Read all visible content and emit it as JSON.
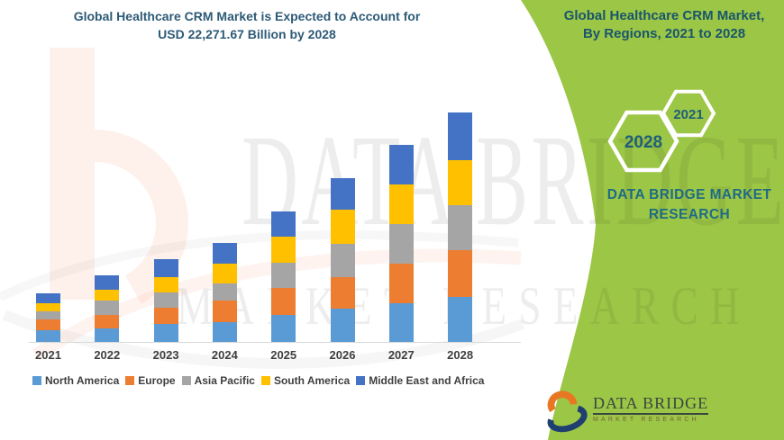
{
  "header": {
    "title_line1": "Global Healthcare CRM Market is Expected to Account for",
    "title_line2": "USD 22,271.67 Billion by 2028"
  },
  "banner": {
    "title_line1": "Global Healthcare CRM Market,",
    "title_line2": "By Regions, 2021 to 2028",
    "hexagon_large_label": "2028",
    "hexagon_small_label": "2021",
    "brand_line1": "DATA BRIDGE MARKET",
    "brand_line2": "RESEARCH",
    "background_color": "#9CC646",
    "text_color": "#19566B",
    "brand_text_color": "#1E6B84"
  },
  "watermark": {
    "row1": "DATA BRIDGE",
    "row2": "MARKET RESEARCH"
  },
  "logo": {
    "name": "DATA BRIDGE",
    "subtext": "MARKET RESEARCH"
  },
  "chart_data": {
    "type": "bar",
    "stacked": true,
    "title": "Global Healthcare CRM Market, By Regions, 2021 to 2028",
    "units": "USD Billion (estimated from bar heights; 2028 total stated as 22,271.67)",
    "stated_total_2028": "22,271.67",
    "categories": [
      "2021",
      "2022",
      "2023",
      "2024",
      "2025",
      "2026",
      "2027",
      "2028"
    ],
    "series": [
      {
        "name": "North America",
        "color": "#5B9BD5",
        "values": [
          1109,
          1310,
          1746,
          1894,
          2645,
          3204,
          3728,
          4365
        ]
      },
      {
        "name": "Europe",
        "color": "#ED7D31",
        "values": [
          1074,
          1310,
          1598,
          2121,
          2593,
          3056,
          3894,
          4513
        ]
      },
      {
        "name": "Asia Pacific",
        "color": "#A5A5A5",
        "values": [
          812,
          1371,
          1458,
          1659,
          2471,
          3283,
          3789,
          4426
        ]
      },
      {
        "name": "South America",
        "color": "#FFC000",
        "values": [
          786,
          1100,
          1458,
          1947,
          2505,
          3318,
          3867,
          4365
        ]
      },
      {
        "name": "Middle East and Africa",
        "color": "#4472C4",
        "values": [
          960,
          1371,
          1746,
          2008,
          2471,
          3056,
          3815,
          4602.67
        ]
      }
    ],
    "totals": [
      4741,
      6462,
      8006,
      9629,
      12685,
      15917,
      19093,
      22271.67
    ],
    "legend_position": "bottom",
    "grid": false,
    "y_axis_labels_shown": false,
    "axis_color": "#D9D9D9",
    "tick_label_color": "#3F3F3F"
  }
}
